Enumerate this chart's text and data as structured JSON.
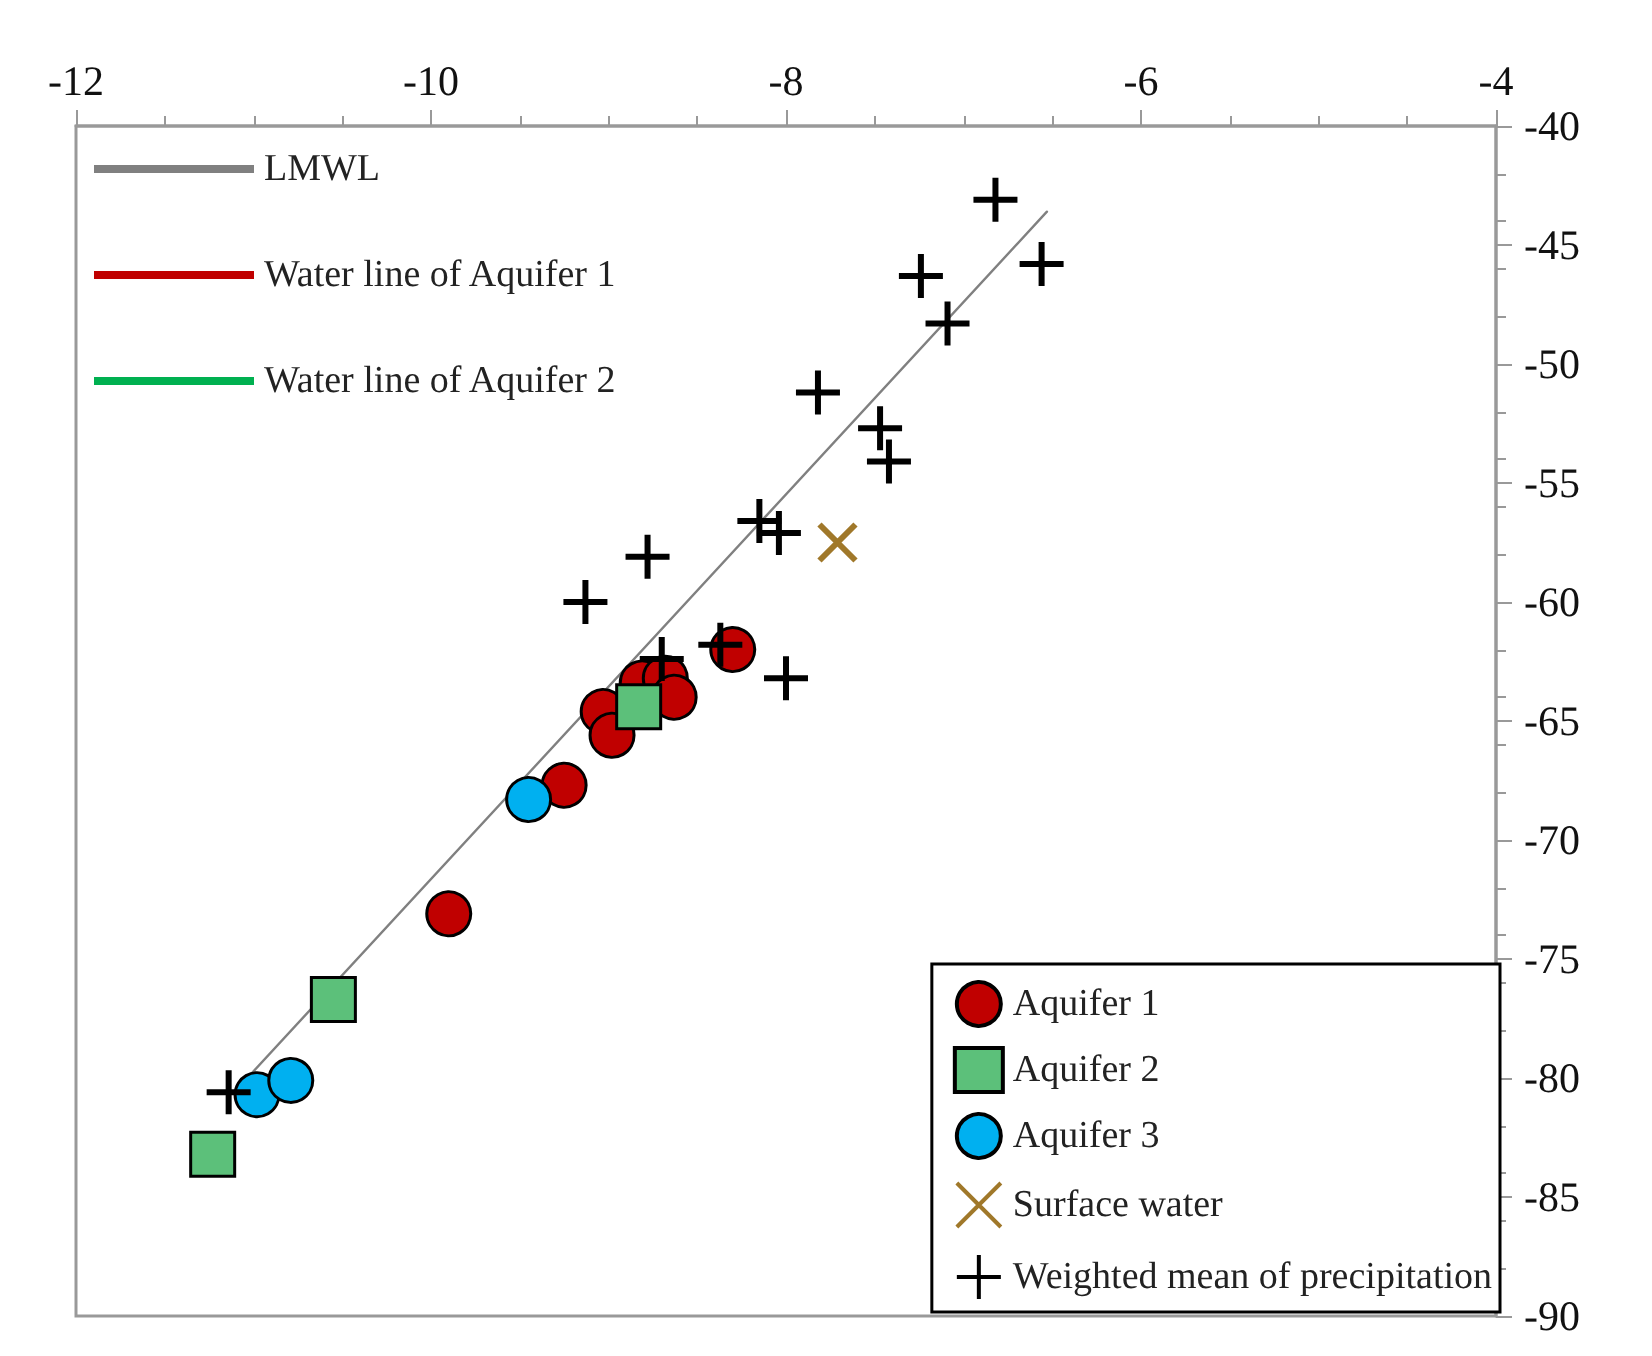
{
  "chart_data": {
    "type": "scatter",
    "xlim": [
      -12,
      -4
    ],
    "xticks": [
      -12,
      -10,
      -8,
      -6,
      -4
    ],
    "ylim": [
      -90,
      -40
    ],
    "yticks": [
      -90,
      -85,
      -80,
      -75,
      -70,
      -65,
      -60,
      -55,
      -50,
      -45,
      -40
    ],
    "grid": false,
    "legend": "bottom right",
    "series": [
      {
        "name": "LMWL",
        "type": "line",
        "color": "#808080",
        "x": [
          -11.01,
          -6.53
        ],
        "values": [
          -79.8,
          -43.6
        ]
      },
      {
        "name": "Water line of Aquifer 1",
        "type": "line",
        "color": "#c00000"
      },
      {
        "name": "Water line of Aquifer 2",
        "type": "line",
        "color": "#00b050"
      },
      {
        "name": "Aquifer 1",
        "marker": "circle",
        "color": "#c00000",
        "x": [
          -8.3,
          -8.81,
          -8.68,
          -8.63,
          -9.03,
          -8.98,
          -9.25,
          -9.9
        ],
        "values": [
          -62.0,
          -63.4,
          -63.2,
          -64.0,
          -64.6,
          -65.6,
          -67.7,
          -73.1
        ]
      },
      {
        "name": "Aquifer 2",
        "marker": "square",
        "color": "#5cc07a",
        "x": [
          -8.83,
          -10.55,
          -11.23
        ],
        "values": [
          -64.4,
          -76.7,
          -83.2
        ]
      },
      {
        "name": "Aquifer 3",
        "marker": "circle",
        "color": "#00b0f0",
        "x": [
          -9.45,
          -10.98,
          -10.79
        ],
        "values": [
          -68.3,
          -80.7,
          -80.1
        ]
      },
      {
        "name": "Surface water",
        "marker": "x",
        "color": "#a0782a",
        "x": [
          -7.71
        ],
        "values": [
          -57.5
        ]
      },
      {
        "name": "Weighted mean of precipitation",
        "marker": "cross",
        "color": "#000000",
        "x": [
          -6.82,
          -6.56,
          -7.24,
          -7.09,
          -7.82,
          -7.47,
          -7.42,
          -8.15,
          -8.04,
          -8.78,
          -9.13,
          -8.37,
          -8.0,
          -8.7,
          -11.14
        ],
        "values": [
          -43.1,
          -45.8,
          -46.3,
          -48.3,
          -51.2,
          -52.7,
          -54.1,
          -56.6,
          -57.1,
          -58.1,
          -60.0,
          -61.8,
          -63.2,
          -62.4,
          -80.6
        ]
      }
    ]
  }
}
